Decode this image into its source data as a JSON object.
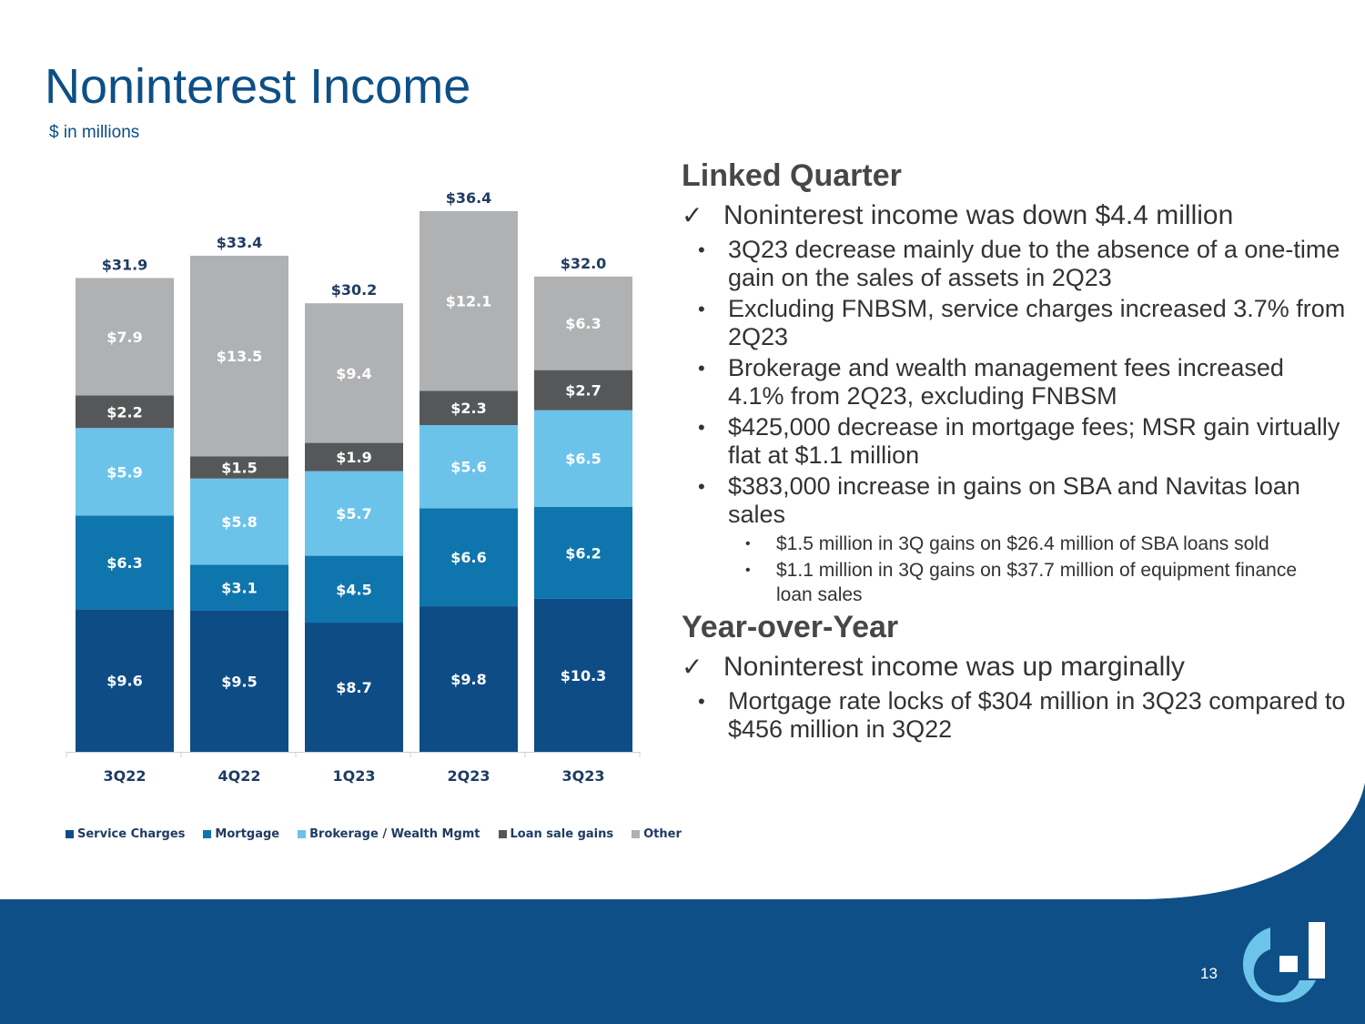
{
  "slide": {
    "title": "Noninterest Income",
    "subtitle": "$ in millions",
    "page_number": "13"
  },
  "colors": {
    "primary_blue": "#0d4f86",
    "service_charges": "#0e4c86",
    "mortgage": "#0f75ad",
    "brokerage": "#6bc3ea",
    "loan_sale_gains": "#555759",
    "other": "#b0b1b3",
    "logo_light": "#6cc4ea"
  },
  "chart_data": {
    "type": "bar",
    "stacked": true,
    "categories": [
      "3Q22",
      "4Q22",
      "1Q23",
      "2Q23",
      "3Q23"
    ],
    "series": [
      {
        "name": "Service Charges",
        "values": [
          9.6,
          9.5,
          8.7,
          9.8,
          10.3
        ],
        "labels": [
          "$9.6",
          "$9.5",
          "$8.7",
          "$9.8",
          "$10.3"
        ],
        "color": "#0e4c86",
        "label_color": "#ffffff"
      },
      {
        "name": "Mortgage",
        "values": [
          6.3,
          3.1,
          4.5,
          6.6,
          6.2
        ],
        "labels": [
          "$6.3",
          "$3.1",
          "$4.5",
          "$6.6",
          "$6.2"
        ],
        "color": "#0f75ad",
        "label_color": "#ffffff"
      },
      {
        "name": "Brokerage / Wealth Mgmt",
        "values": [
          5.9,
          5.8,
          5.7,
          5.6,
          6.5
        ],
        "labels": [
          "$5.9",
          "$5.8",
          "$5.7",
          "$5.6",
          "$6.5"
        ],
        "color": "#6bc3ea",
        "label_color": "#ffffff"
      },
      {
        "name": "Loan sale gains",
        "values": [
          2.2,
          1.5,
          1.9,
          2.3,
          2.7
        ],
        "labels": [
          "$2.2",
          "$1.5",
          "$1.9",
          "$2.3",
          "$2.7"
        ],
        "color": "#555759",
        "label_color": "#ffffff"
      },
      {
        "name": "Other",
        "values": [
          7.9,
          13.5,
          9.4,
          12.1,
          6.3
        ],
        "labels": [
          "$7.9",
          "$13.5",
          "$9.4",
          "$12.1",
          "$6.3"
        ],
        "color": "#b0b1b3",
        "label_color": "#ffffff"
      }
    ],
    "totals": [
      31.9,
      33.4,
      30.2,
      36.4,
      32.0
    ],
    "total_labels": [
      "$31.9",
      "$33.4",
      "$30.2",
      "$36.4",
      "$32.0"
    ],
    "ylim": [
      0,
      36.4
    ],
    "legend_position": "bottom",
    "grid": false
  },
  "commentary": {
    "linked_quarter": {
      "heading": "Linked Quarter",
      "check_mark": "✓",
      "check": "Noninterest income was down $4.4 million",
      "bullet_char": "•",
      "bullets": [
        "3Q23 decrease mainly due to the absence of a one-time gain on the sales of assets in 2Q23",
        "Excluding FNBSM, service charges increased 3.7% from 2Q23",
        "Brokerage and wealth management fees increased 4.1% from 2Q23, excluding FNBSM",
        "$425,000 decrease in mortgage fees; MSR gain virtually flat at $1.1 million",
        "$383,000 increase in gains on SBA and Navitas loan sales"
      ],
      "sub_bullets": [
        "$1.5 million in 3Q gains on $26.4 million of SBA loans sold",
        "$1.1 million in 3Q gains on $37.7 million of equipment finance loan sales"
      ]
    },
    "year_over_year": {
      "heading": "Year-over-Year",
      "check_mark": "✓",
      "check": "Noninterest income was up marginally",
      "bullet_char": "•",
      "bullets": [
        "Mortgage rate locks of $304 million in 3Q23 compared to $456 million in 3Q22"
      ]
    }
  }
}
